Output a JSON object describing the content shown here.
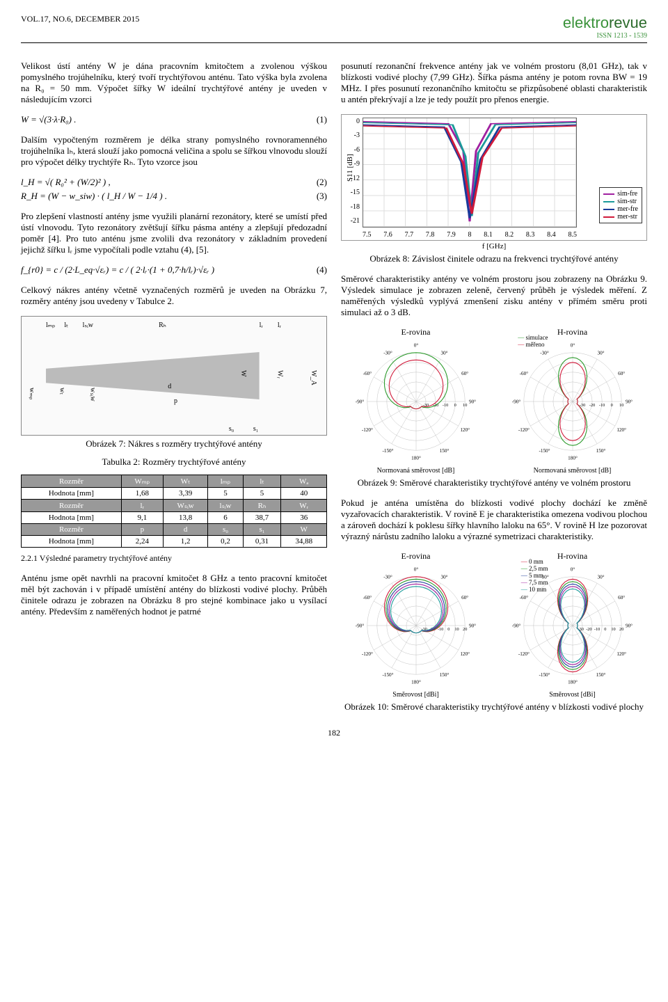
{
  "header": {
    "vol": "VOL.17, NO.6,  DECEMBER 2015",
    "logo1": "elektro",
    "logo2": "revue",
    "issn": "ISSN 1213 - 1539"
  },
  "left": {
    "p1": "Velikost ústí antény W je dána pracovním kmitočtem a zvolenou výškou pomyslného trojúhelníku, který tvoří trychtýřovou anténu. Tato výška byla zvolena na R₀ = 50 mm. Výpočet šířky W ideální trychtýřové antény je uveden v následujícím vzorci",
    "eq1": "W = √(3·λ·R₀) .",
    "eq1n": "(1)",
    "p2": "Dalším vypočteným rozměrem je délka strany pomyslného rovnoramenného trojúhelníka lₕ, která slouží jako pomocná veličina a spolu se šířkou vlnovodu slouží pro výpočet délky trychtýře Rₕ. Tyto vzorce jsou",
    "eq2": "l_H = √( R₀² + (W/2)² ) ,",
    "eq2n": "(2)",
    "eq3": "R_H = (W − w_siw) · ( l_H / W − 1/4 ) .",
    "eq3n": "(3)",
    "p3": "Pro zlepšení vlastností antény jsme využili planární rezonátory, které se umístí před ústí vlnovodu. Tyto rezonátory zvětšují šířku pásma antény a zlepšují předozadní poměr [4]. Pro tuto anténu jsme zvolili dva rezonátory v základním provedení jejichž šířku lᵣ jsme vypočítali podle vztahu (4), [5].",
    "eq4": "f_{r0} = c / (2·L_eq·√εᵣ) = c / ( 2·lᵣ·(1 + 0,7·h/lᵣ)·√εᵣ )",
    "eq4n": "(4)",
    "p4": "Celkový nákres antény včetně vyznačených rozměrů je uveden na Obrázku 7, rozměry antény jsou uvedeny v Tabulce 2.",
    "fig7cap": "Obrázek 7: Nákres s rozměry trychtýřové antény",
    "dlabels": {
      "lmp": "lₘₚ",
      "lt": "lₜ",
      "lsiw": "lₛᵢw",
      "Rh": "Rₕ",
      "lr": "lᵣ",
      "d": "d",
      "p": "p",
      "s0": "s₀",
      "s1": "s₁",
      "W": "W",
      "Wr": "Wᵣ",
      "WA": "W_A",
      "wmp": "wₘₚ",
      "wt": "wₜ",
      "wsiw": "wₛᵢw"
    },
    "tab2cap": "Tabulka 2: Rozměry trychtýřové antény",
    "tab2": {
      "r1h": [
        "Rozměr",
        "Wₘₚ",
        "Wₜ",
        "lₘₚ",
        "lₜ",
        "Wₐ"
      ],
      "r1": [
        "Hodnota [mm]",
        "1,68",
        "3,39",
        "5",
        "5",
        "40"
      ],
      "r2h": [
        "Rozměr",
        "lᵣ",
        "Wₛᵢw",
        "lₛᵢw",
        "Rₕ",
        "Wᵣ"
      ],
      "r2": [
        "Hodnota [mm]",
        "9,1",
        "13,8",
        "6",
        "38,7",
        "36"
      ],
      "r3h": [
        "Rozměr",
        "p",
        "d",
        "s₀",
        "s₁",
        "W"
      ],
      "r3": [
        "Hodnota [mm]",
        "2,24",
        "1,2",
        "0,2",
        "0,31",
        "34,88"
      ]
    },
    "sec": "2.2.1  Výsledné parametry trychtýřové antény",
    "p5": "Anténu jsme opět navrhli na pracovní kmitočet 8 GHz a tento pracovní kmitočet měl být zachován i v případě umístění antény do blízkosti vodivé plochy. Průběh činitele odrazu je zobrazen na Obrázku 8 pro stejné kombinace jako u vysílací antény. Především z naměřených hodnot je patrné"
  },
  "right": {
    "p1": "posunutí rezonanční frekvence antény jak ve volném prostoru (8,01 GHz), tak v blízkosti vodivé plochy (7,99 GHz). Šířka pásma antény je potom rovna BW = 19 MHz. I přes posunutí rezonančního kmitočtu se přizpůsobené oblasti charakteristik u antén překrývají a lze je tedy použít pro přenos energie.",
    "chart8": {
      "ylabel": "S11 [dB]",
      "xlabel": "f [GHz]",
      "yticks": [
        "0",
        "-3",
        "-6",
        "-9",
        "-12",
        "-15",
        "-18",
        "-21"
      ],
      "xticks": [
        "7.5",
        "7.6",
        "7.7",
        "7.8",
        "7.9",
        "8",
        "8.1",
        "8.2",
        "8.3",
        "8.4",
        "8.5"
      ],
      "legend": [
        {
          "label": "sim-fre",
          "color": "#a020a0"
        },
        {
          "label": "sim-str",
          "color": "#1a9a9a"
        },
        {
          "label": "mer-fre",
          "color": "#1a3a9a"
        },
        {
          "label": "mer-str",
          "color": "#d01a3a"
        }
      ]
    },
    "fig8cap": "Obrázek 8: Závislost činitele odrazu na frekvenci trychtýřové antény",
    "p2": "Směrové charakteristiky antény ve volném prostoru jsou zobrazeny na Obrázku 9. Výsledek simulace je zobrazen zeleně, červený průběh je výsledek měření. Z naměřených výsledků vyplývá zmenšení zisku antény v přímém směru proti simulaci až o 3 dB.",
    "polar9": {
      "t1": "E-rovina",
      "t2": "H-rovina",
      "angles": [
        "0°",
        "30°",
        "60°",
        "90°",
        "120°",
        "150°",
        "180°",
        "-150°",
        "-120°",
        "-90°",
        "-60°",
        "-30°"
      ],
      "rticks": [
        "-30",
        "-20",
        "-10",
        "0",
        "10"
      ],
      "legend": [
        {
          "label": "simulace",
          "color": "#2a9a2a"
        },
        {
          "label": "měřeno",
          "color": "#d01a3a"
        }
      ],
      "axis": "Normovaná směrovost [dB]"
    },
    "fig9cap": "Obrázek 9: Směrové charakteristiky trychtýřové antény ve volném prostoru",
    "p3": "Pokud je anténa umístěna do blízkosti vodivé plochy dochází ke změně vyzařovacích charakteristik. V rovině E je charakteristika omezena vodivou plochou a zároveň dochází k poklesu šířky hlavního laloku na 65°. V rovině H lze pozorovat výrazný nárůstu zadního laloku a výrazné symetrizaci charakteristiky.",
    "polar10": {
      "t1": "E-rovina",
      "t2": "H-rovina",
      "angles": [
        "0°",
        "30°",
        "60°",
        "90°",
        "120°",
        "150°",
        "180°",
        "-150°",
        "-120°",
        "-90°",
        "-60°",
        "-30°"
      ],
      "rticks": [
        "-30",
        "-20",
        "-10",
        "0",
        "10",
        "20"
      ],
      "legend": [
        {
          "label": "0 mm",
          "color": "#d01a3a"
        },
        {
          "label": "2,5 mm",
          "color": "#2a9a2a"
        },
        {
          "label": "5 mm",
          "color": "#1a3a9a"
        },
        {
          "label": "7,5 mm",
          "color": "#a020a0"
        },
        {
          "label": "10 mm",
          "color": "#1a9a9a"
        }
      ],
      "axis": "Směrovost [dBi]"
    },
    "fig10cap": "Obrázek 10: Směrové charakteristiky trychtýřové antény v blízkosti vodivé plochy"
  },
  "pagenum": "182"
}
